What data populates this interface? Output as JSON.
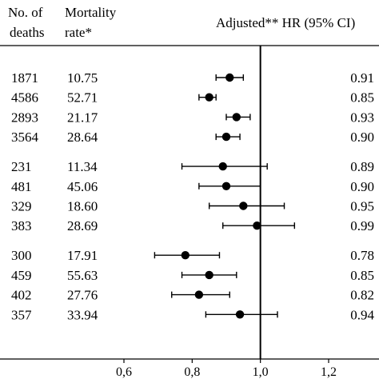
{
  "header": {
    "col1_line1": "No. of",
    "col1_line2": "deaths",
    "col2_line1": "Mortality",
    "col2_line2": "rate*",
    "col3": "Adjusted** HR (95% CI)"
  },
  "chart_data": {
    "type": "forest",
    "reference_line": 1.0,
    "xlim": [
      0.55,
      1.28
    ],
    "xticks": [
      0.6,
      0.8,
      1.0,
      1.2
    ],
    "xtick_labels": [
      "0,6",
      "0,8",
      "1,0",
      "1,2"
    ],
    "groups": [
      {
        "rows": [
          {
            "deaths": "1871",
            "rate": "10.75",
            "hr": 0.91,
            "lo": 0.87,
            "hi": 0.95,
            "label": "0.91"
          },
          {
            "deaths": "4586",
            "rate": "52.71",
            "hr": 0.85,
            "lo": 0.82,
            "hi": 0.87,
            "label": "0.85"
          },
          {
            "deaths": "2893",
            "rate": "21.17",
            "hr": 0.93,
            "lo": 0.9,
            "hi": 0.97,
            "label": "0.93"
          },
          {
            "deaths": "3564",
            "rate": "28.64",
            "hr": 0.9,
            "lo": 0.87,
            "hi": 0.94,
            "label": "0.90"
          }
        ]
      },
      {
        "rows": [
          {
            "deaths": "231",
            "rate": "11.34",
            "hr": 0.89,
            "lo": 0.77,
            "hi": 1.02,
            "label": "0.89"
          },
          {
            "deaths": "481",
            "rate": "45.06",
            "hr": 0.9,
            "lo": 0.82,
            "hi": 1.0,
            "label": "0.90"
          },
          {
            "deaths": "329",
            "rate": "18.60",
            "hr": 0.95,
            "lo": 0.85,
            "hi": 1.07,
            "label": "0.95"
          },
          {
            "deaths": "383",
            "rate": "28.69",
            "hr": 0.99,
            "lo": 0.89,
            "hi": 1.1,
            "label": "0.99"
          }
        ]
      },
      {
        "rows": [
          {
            "deaths": "300",
            "rate": "17.91",
            "hr": 0.78,
            "lo": 0.69,
            "hi": 0.88,
            "label": "0.78"
          },
          {
            "deaths": "459",
            "rate": "55.63",
            "hr": 0.85,
            "lo": 0.77,
            "hi": 0.93,
            "label": "0.85"
          },
          {
            "deaths": "402",
            "rate": "27.76",
            "hr": 0.82,
            "lo": 0.74,
            "hi": 0.91,
            "label": "0.82"
          },
          {
            "deaths": "357",
            "rate": "33.94",
            "hr": 0.94,
            "lo": 0.84,
            "hi": 1.05,
            "label": "0.94"
          }
        ]
      }
    ],
    "colors": {
      "ink": "#000000",
      "background": "#ffffff"
    }
  }
}
